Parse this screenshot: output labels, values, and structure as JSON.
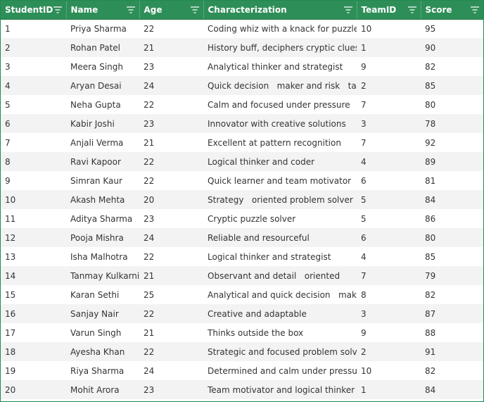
{
  "table": {
    "headers": [
      "StudentID",
      "Name",
      "Age",
      "Characterization",
      "TeamID",
      "Score"
    ],
    "header_bg": "#2e8e58",
    "rows": [
      [
        "1",
        "Priya Sharma",
        "22",
        "Coding whiz with a knack for puzzles",
        "10",
        "95"
      ],
      [
        "2",
        "Rohan Patel",
        "21",
        "History buff, deciphers cryptic clues",
        "1",
        "90"
      ],
      [
        "3",
        "Meera Singh",
        "23",
        "Analytical thinker and strategist",
        "9",
        "82"
      ],
      [
        "4",
        "Aryan Desai",
        "24",
        "Quick decision   maker and risk   taker",
        "2",
        "85"
      ],
      [
        "5",
        "Neha Gupta",
        "22",
        "Calm and focused under pressure",
        "7",
        "80"
      ],
      [
        "6",
        "Kabir Joshi",
        "23",
        "Innovator with creative solutions",
        "3",
        "78"
      ],
      [
        "7",
        "Anjali Verma",
        "21",
        "Excellent at pattern recognition",
        "7",
        "92"
      ],
      [
        "8",
        "Ravi Kapoor",
        "22",
        "Logical thinker and coder",
        "4",
        "89"
      ],
      [
        "9",
        "Simran Kaur",
        "22",
        "Quick learner and team motivator",
        "6",
        "81"
      ],
      [
        "10",
        "Akash Mehta",
        "20",
        "Strategy   oriented problem solver",
        "5",
        "84"
      ],
      [
        "11",
        "Aditya Sharma",
        "23",
        "Cryptic puzzle solver",
        "5",
        "86"
      ],
      [
        "12",
        "Pooja Mishra",
        "24",
        "Reliable and resourceful",
        "6",
        "80"
      ],
      [
        "13",
        "Isha Malhotra",
        "22",
        "Logical thinker and strategist",
        "4",
        "85"
      ],
      [
        "14",
        "Tanmay Kulkarni",
        "21",
        "Observant and detail   oriented",
        "7",
        "79"
      ],
      [
        "15",
        "Karan Sethi",
        "25",
        "Analytical and quick decision   maker",
        "8",
        "82"
      ],
      [
        "16",
        "Sanjay Nair",
        "22",
        "Creative and adaptable",
        "3",
        "87"
      ],
      [
        "17",
        "Varun Singh",
        "21",
        "Thinks outside the box",
        "9",
        "88"
      ],
      [
        "18",
        "Ayesha Khan",
        "22",
        "Strategic and focused problem solver",
        "2",
        "91"
      ],
      [
        "19",
        "Riya Sharma",
        "24",
        "Determined and calm under pressure",
        "10",
        "82"
      ],
      [
        "20",
        "Mohit Arora",
        "23",
        "Team motivator and logical thinker",
        "1",
        "84"
      ]
    ]
  }
}
